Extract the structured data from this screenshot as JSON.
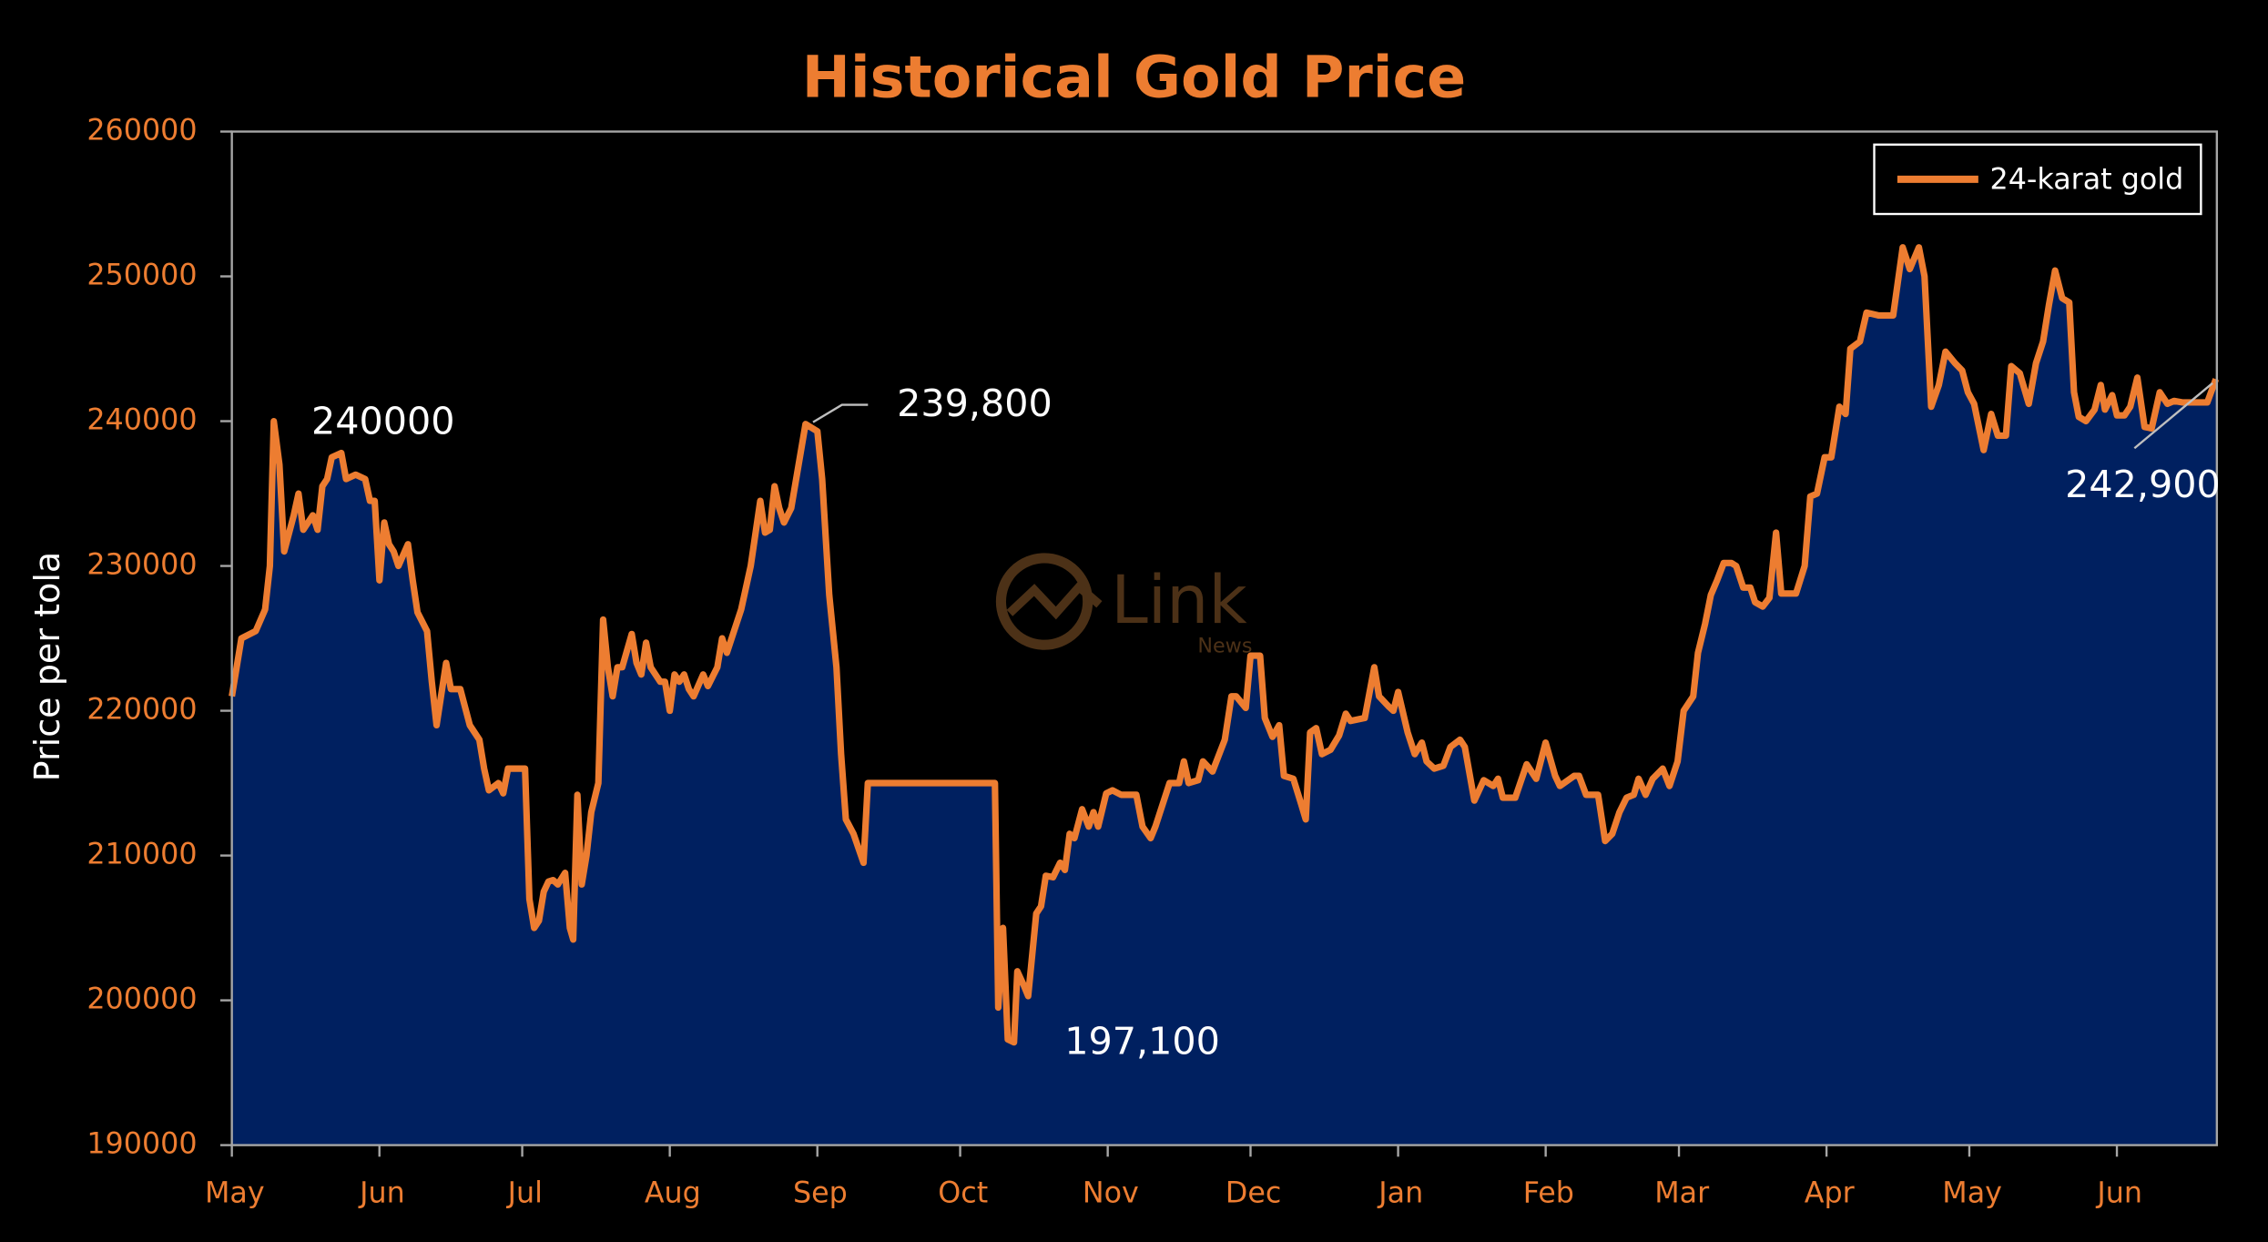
{
  "chart_data": {
    "type": "area_line",
    "title": "Historical Gold Price",
    "y_label": "Price per tola",
    "watermark": {
      "text": "Link",
      "sub": "News"
    },
    "legend": "upper right",
    "xlim": [
      0,
      417
    ],
    "xticks": [
      {
        "value": 0,
        "label": "May"
      },
      {
        "value": 31,
        "label": "Jun"
      },
      {
        "value": 61,
        "label": "Jul"
      },
      {
        "value": 92,
        "label": "Aug"
      },
      {
        "value": 123,
        "label": "Sep"
      },
      {
        "value": 153,
        "label": "Oct"
      },
      {
        "value": 184,
        "label": "Nov"
      },
      {
        "value": 214,
        "label": "Dec"
      },
      {
        "value": 245,
        "label": "Jan"
      },
      {
        "value": 276,
        "label": "Feb"
      },
      {
        "value": 304,
        "label": "Mar"
      },
      {
        "value": 335,
        "label": "Apr"
      },
      {
        "value": 365,
        "label": "May"
      },
      {
        "value": 396,
        "label": "Jun"
      }
    ],
    "ylim": [
      190000,
      260000
    ],
    "yticks": [
      190000,
      200000,
      210000,
      220000,
      230000,
      240000,
      250000,
      260000
    ],
    "annotations": [
      {
        "text": "240000"
      },
      {
        "text": "239,800"
      },
      {
        "text": "197,100"
      },
      {
        "text": "242,900"
      }
    ],
    "series": [
      {
        "name": "24-karat gold",
        "color": "#ed7d31",
        "fill": "#002060",
        "x": [
          0,
          2,
          5,
          7,
          8,
          8.8,
          10,
          11,
          13,
          14,
          15,
          17,
          18,
          19,
          20,
          21,
          23,
          24,
          26,
          28,
          29,
          30,
          31,
          32,
          33,
          34,
          35,
          37,
          38,
          39,
          41,
          42,
          43,
          45,
          46,
          48,
          50,
          52,
          53,
          54,
          56,
          57,
          58,
          61.6,
          62.5,
          63.5,
          64.5,
          65.5,
          66.5,
          67.5,
          68.5,
          70,
          71,
          71.7,
          72.6,
          73.5,
          74.5,
          75.5,
          77,
          78,
          79,
          80,
          81,
          82,
          84,
          85,
          86,
          87,
          88,
          90,
          91,
          92,
          93,
          94,
          95,
          96,
          97,
          99,
          100,
          102,
          103,
          104,
          105,
          107,
          109,
          111,
          112,
          113,
          114,
          115,
          116,
          117.5,
          120.5,
          123,
          124,
          125.5,
          127,
          128,
          129,
          130.6,
          132.7,
          133.6,
          160.3,
          161,
          162,
          163,
          164.3,
          165,
          166.4,
          167.3,
          169,
          170,
          171,
          172.5,
          174,
          175,
          176,
          177,
          178.6,
          180,
          181,
          182,
          183.7,
          185,
          186.8,
          190,
          191.3,
          193,
          194,
          197,
          199,
          200,
          201,
          203,
          204,
          206,
          208.6,
          210,
          211,
          213,
          214,
          216,
          217,
          218.6,
          220,
          221,
          223,
          224.7,
          225.6,
          226.5,
          227.8,
          229,
          230.8,
          232.6,
          234,
          235,
          238,
          240,
          241,
          243,
          244,
          245,
          247,
          248.5,
          250,
          251,
          252.6,
          254.5,
          256,
          258,
          259,
          261,
          263,
          265,
          266,
          267,
          269.6,
          272,
          274,
          276,
          278,
          279,
          282,
          283,
          284.5,
          287,
          288.5,
          290,
          291.5,
          293,
          294.5,
          295.5,
          297,
          298.5,
          300.6,
          302,
          303.7,
          305,
          307,
          308,
          309.5,
          310.7,
          312,
          313.4,
          315,
          316,
          317.5,
          319,
          320,
          321.6,
          323,
          324.4,
          325.5,
          328.6,
          330.4,
          331.6,
          333,
          334.6,
          336,
          337.7,
          339,
          340,
          342,
          343.4,
          346,
          349,
          351,
          352.5,
          354.4,
          355.6,
          357,
          358.6,
          360,
          362,
          363.5,
          364.7,
          366,
          368,
          369.6,
          371,
          372.7,
          373.8,
          375.6,
          377.5,
          379,
          380.5,
          381.7,
          383,
          384.5,
          386,
          387,
          388,
          389.5,
          391.3,
          392.6,
          393.5,
          395,
          396,
          397.6,
          398.8,
          400.3,
          401.8,
          403.3,
          405,
          406.6,
          408,
          409.7,
          415,
          416.8
        ],
        "values": [
          221000,
          225000,
          225500,
          227000,
          230000,
          240000,
          237000,
          231000,
          233500,
          235000,
          232500,
          233500,
          232500,
          235500,
          236000,
          237500,
          237800,
          236000,
          236300,
          236000,
          234500,
          234500,
          229000,
          233000,
          231500,
          231000,
          230000,
          231500,
          229000,
          226800,
          225500,
          222000,
          219000,
          223300,
          221500,
          221500,
          219000,
          218000,
          216000,
          214500,
          215000,
          214300,
          216000,
          216000,
          207000,
          205000,
          205500,
          207500,
          208200,
          208300,
          208000,
          208800,
          205000,
          204200,
          214200,
          208000,
          210000,
          213000,
          215000,
          226300,
          223000,
          221000,
          223000,
          223000,
          225300,
          223300,
          222500,
          224700,
          223000,
          222000,
          222000,
          220000,
          222500,
          222000,
          222500,
          221500,
          221000,
          222500,
          221700,
          223000,
          225000,
          224000,
          225000,
          227000,
          230000,
          234500,
          232300,
          232500,
          235500,
          234000,
          233000,
          234000,
          239800,
          239300,
          236000,
          228000,
          223000,
          217000,
          212500,
          211500,
          209500,
          215000,
          215000,
          199500,
          205000,
          197300,
          197100,
          202000,
          201000,
          200300,
          206000,
          206500,
          208600,
          208500,
          209500,
          209000,
          211500,
          211200,
          213200,
          212000,
          213000,
          212000,
          214300,
          214500,
          214200,
          214200,
          212000,
          211200,
          212000,
          215000,
          215000,
          216500,
          215000,
          215200,
          216500,
          215800,
          218000,
          221000,
          221000,
          220200,
          223800,
          223800,
          219500,
          218200,
          219000,
          215500,
          215300,
          213500,
          212500,
          218500,
          218800,
          217000,
          217300,
          218300,
          219800,
          219300,
          219500,
          223000,
          221000,
          220300,
          220000,
          221300,
          218500,
          217000,
          217800,
          216500,
          216000,
          216200,
          217500,
          218000,
          217500,
          213800,
          215200,
          214800,
          215300,
          214000,
          214000,
          216300,
          215300,
          217800,
          215500,
          214800,
          215500,
          215500,
          214200,
          214200,
          211000,
          211500,
          213000,
          214000,
          214200,
          215300,
          214200,
          215300,
          216000,
          214800,
          216500,
          220000,
          221000,
          224000,
          226000,
          228000,
          229000,
          230200,
          230200,
          230000,
          228500,
          228500,
          227500,
          227200,
          227800,
          232300,
          228100,
          228100,
          230000,
          234800,
          235000,
          237500,
          237500,
          241000,
          240500,
          245000,
          245500,
          247500,
          247300,
          247300,
          252000,
          250500,
          252000,
          250000,
          241000,
          242500,
          244800,
          244000,
          243500,
          242000,
          241200,
          238000,
          240500,
          239000,
          239000,
          243800,
          243300,
          241200,
          244000,
          245500,
          248000,
          250400,
          248500,
          248200,
          242000,
          240300,
          240000,
          240800,
          242500,
          240800,
          241800,
          240400,
          240400,
          241000,
          243000,
          239600,
          239500,
          242000,
          241200,
          241400,
          241300,
          241300,
          242900
        ]
      }
    ]
  }
}
